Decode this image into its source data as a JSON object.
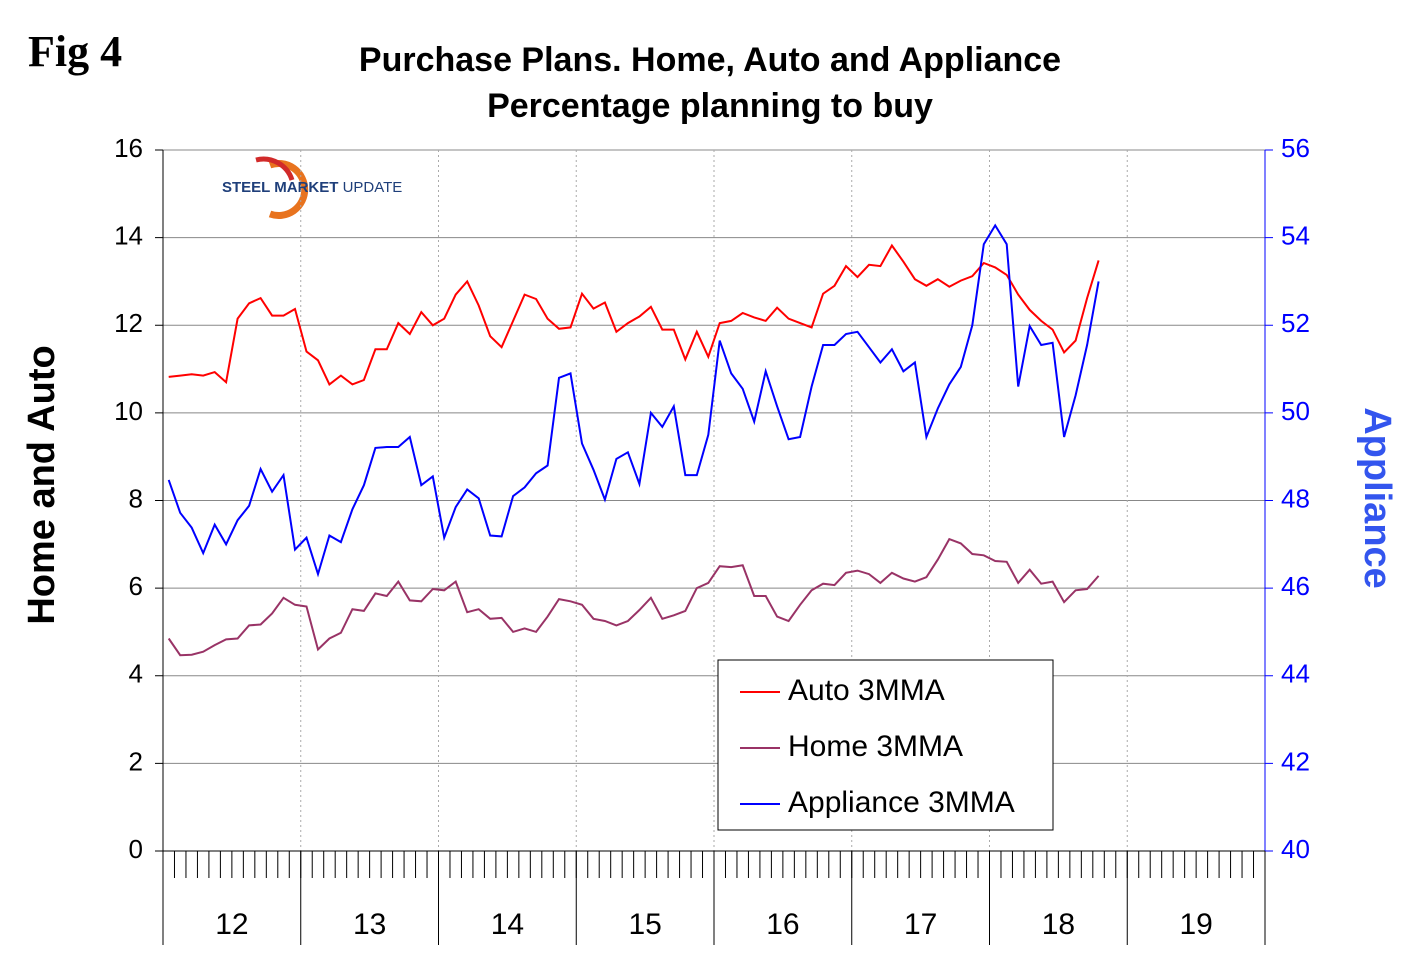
{
  "fig_label": "Fig 4",
  "logo": {
    "bold": "STEEL MARKET",
    "light": "UPDATE"
  },
  "chart_data": {
    "type": "line",
    "title": "Purchase Plans. Home, Auto and Appliance",
    "subtitle": "Percentage planning to buy",
    "y_label": "Home and Auto",
    "y2_label": "Appliance",
    "groups": [
      "12",
      "13",
      "14",
      "15",
      "16",
      "17",
      "18",
      "19"
    ],
    "categories": [
      null,
      null,
      null,
      null,
      null,
      null,
      null,
      null,
      null,
      null,
      null,
      null,
      null,
      null,
      null,
      null,
      null,
      null,
      null,
      null,
      null,
      null,
      null,
      null,
      null,
      null,
      null,
      null,
      null,
      null,
      null,
      null,
      null,
      null,
      null,
      null,
      null,
      null,
      null,
      null,
      null,
      null,
      null,
      null,
      null,
      null,
      null,
      null,
      null,
      null,
      null,
      null,
      null,
      null,
      null,
      null,
      null,
      null,
      null,
      null,
      null,
      null,
      null,
      null,
      null,
      null,
      null,
      null,
      null,
      null,
      null,
      null,
      null,
      null,
      null,
      null,
      null,
      null,
      null,
      null,
      null,
      null,
      null,
      null,
      null,
      null,
      null,
      null,
      null,
      null,
      null,
      null,
      null,
      null,
      null,
      null
    ],
    "ylim": [
      0,
      16
    ],
    "yticks": [
      0,
      2,
      4,
      6,
      8,
      10,
      12,
      14,
      16
    ],
    "y2lim": [
      40,
      56
    ],
    "y2ticks": [
      40,
      42,
      44,
      46,
      48,
      50,
      52,
      54,
      56
    ],
    "grid": true,
    "legend": "bottom-right",
    "series": [
      {
        "name": "Auto 3MMA",
        "color": "#ff0000",
        "values": [
          10.82,
          10.85,
          10.88,
          10.85,
          10.93,
          10.7,
          12.15,
          12.5,
          12.62,
          12.22,
          12.22,
          12.37,
          11.4,
          11.2,
          10.65,
          10.85,
          10.65,
          10.75,
          11.45,
          11.45,
          12.05,
          11.8,
          12.3,
          12.0,
          12.15,
          12.7,
          13.0,
          12.45,
          11.75,
          11.5,
          12.1,
          12.7,
          12.6,
          12.15,
          11.92,
          11.95,
          12.72,
          12.38,
          12.52,
          11.85,
          12.05,
          12.2,
          12.42,
          11.9,
          11.9,
          11.22,
          11.85,
          11.28,
          12.05,
          12.1,
          12.28,
          12.18,
          12.1,
          12.4,
          12.15,
          12.05,
          11.95,
          12.72,
          12.9,
          13.35,
          13.1,
          13.38,
          13.35,
          13.82,
          13.45,
          13.05,
          12.9,
          13.05,
          12.88,
          13.02,
          13.12,
          13.42,
          13.32,
          13.15,
          12.7,
          12.35,
          12.1,
          11.9,
          11.38,
          11.65,
          12.62,
          13.48,
          null,
          null,
          null,
          null,
          null,
          null,
          null,
          null,
          null,
          null,
          null,
          null,
          null,
          null
        ]
      },
      {
        "name": "Home 3MMA",
        "color": "#993366",
        "values": [
          4.85,
          4.47,
          4.48,
          4.55,
          4.7,
          4.83,
          4.85,
          5.15,
          5.17,
          5.42,
          5.78,
          5.62,
          5.58,
          4.6,
          4.85,
          4.98,
          5.52,
          5.48,
          5.88,
          5.82,
          6.15,
          5.72,
          5.7,
          5.98,
          5.95,
          6.15,
          5.45,
          5.52,
          5.3,
          5.32,
          5.0,
          5.08,
          5.0,
          5.35,
          5.75,
          5.7,
          5.62,
          5.3,
          5.25,
          5.15,
          5.25,
          5.5,
          5.78,
          5.3,
          5.38,
          5.48,
          6.0,
          6.12,
          6.5,
          6.48,
          6.52,
          5.82,
          5.82,
          5.35,
          5.25,
          5.62,
          5.95,
          6.1,
          6.07,
          6.35,
          6.4,
          6.32,
          6.12,
          6.35,
          6.22,
          6.15,
          6.25,
          6.65,
          7.12,
          7.02,
          6.78,
          6.75,
          6.62,
          6.6,
          6.12,
          6.42,
          6.1,
          6.15,
          5.68,
          5.95,
          5.98,
          6.28,
          null,
          null,
          null,
          null,
          null,
          null,
          null,
          null,
          null,
          null,
          null,
          null,
          null,
          null
        ]
      },
      {
        "name": "Appliance 3MMA",
        "color": "#0000ff",
        "axis": "y2",
        "values": [
          48.47,
          47.72,
          47.38,
          46.8,
          47.45,
          47.0,
          47.55,
          47.88,
          48.72,
          48.2,
          48.58,
          46.88,
          47.15,
          46.32,
          47.2,
          47.05,
          47.8,
          48.35,
          49.2,
          49.22,
          49.22,
          49.45,
          48.35,
          48.55,
          47.15,
          47.85,
          48.25,
          48.05,
          47.2,
          47.18,
          48.1,
          48.3,
          48.62,
          48.8,
          50.8,
          50.9,
          49.3,
          48.7,
          48.02,
          48.95,
          49.1,
          48.38,
          50.0,
          49.68,
          50.15,
          48.58,
          48.58,
          49.5,
          51.65,
          50.9,
          50.55,
          49.8,
          50.95,
          50.15,
          49.4,
          49.45,
          50.6,
          51.55,
          51.55,
          51.8,
          51.85,
          51.5,
          51.15,
          51.45,
          50.95,
          51.15,
          49.45,
          50.1,
          50.65,
          51.05,
          52.0,
          53.85,
          54.28,
          53.85,
          50.6,
          51.98,
          51.55,
          51.6,
          49.45,
          50.4,
          51.55,
          53.0,
          null,
          null,
          null,
          null,
          null,
          null,
          null,
          null,
          null,
          null,
          null,
          null,
          null,
          null
        ]
      }
    ]
  }
}
